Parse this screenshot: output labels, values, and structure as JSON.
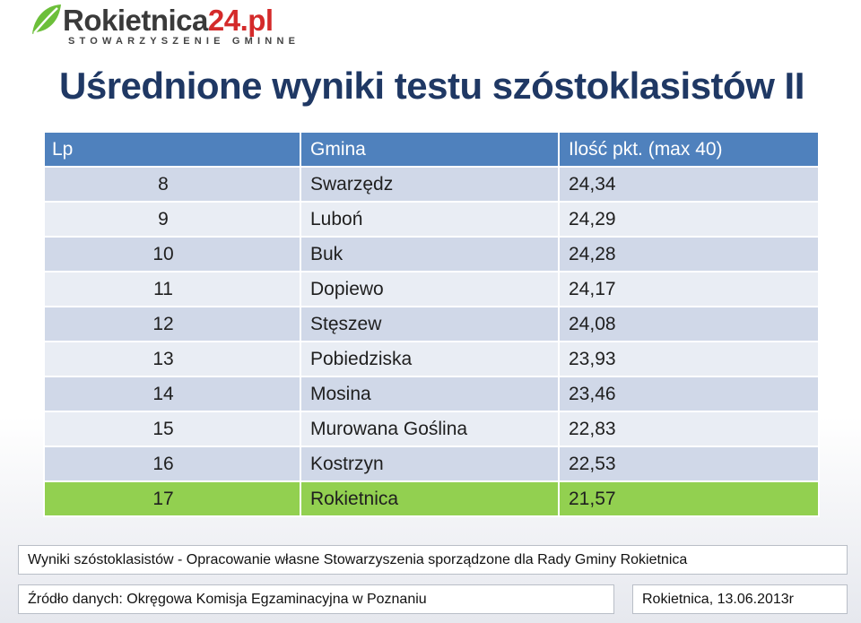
{
  "logo": {
    "brand": "Rokietnica",
    "brand_accent": "24.pl",
    "tagline": "STOWARZYSZENIE GMINNE",
    "icon": "leaf-icon",
    "accent_color": "#d42a2a",
    "leaf_color": "#6cbf3a"
  },
  "title": "Uśrednione wyniki testu szóstoklasistów  II",
  "table": {
    "headers": [
      "Lp",
      "Gmina",
      "Ilość pkt. (max 40)"
    ],
    "rows": [
      {
        "lp": "8",
        "gmina": "Swarzędz",
        "pkt": "24,34"
      },
      {
        "lp": "9",
        "gmina": "Luboń",
        "pkt": "24,29"
      },
      {
        "lp": "10",
        "gmina": "Buk",
        "pkt": "24,28"
      },
      {
        "lp": "11",
        "gmina": "Dopiewo",
        "pkt": "24,17"
      },
      {
        "lp": "12",
        "gmina": "Stęszew",
        "pkt": "24,08"
      },
      {
        "lp": "13",
        "gmina": "Pobiedziska",
        "pkt": "23,93"
      },
      {
        "lp": "14",
        "gmina": "Mosina",
        "pkt": "23,46"
      },
      {
        "lp": "15",
        "gmina": "Murowana Goślina",
        "pkt": "22,83"
      },
      {
        "lp": "16",
        "gmina": "Kostrzyn",
        "pkt": "22,53"
      },
      {
        "lp": "17",
        "gmina": "Rokietnica",
        "pkt": "21,57"
      }
    ],
    "highlight_lp": "17",
    "header_color": "#4f81bd",
    "highlight_color": "#92d050"
  },
  "footer": {
    "description": "Wyniki szóstoklasistów - Opracowanie własne Stowarzyszenia sporządzone dla Rady Gminy Rokietnica",
    "source": "Źródło danych: Okręgowa Komisja Egzaminacyjna w Poznaniu",
    "date": "Rokietnica, 13.06.2013r"
  }
}
